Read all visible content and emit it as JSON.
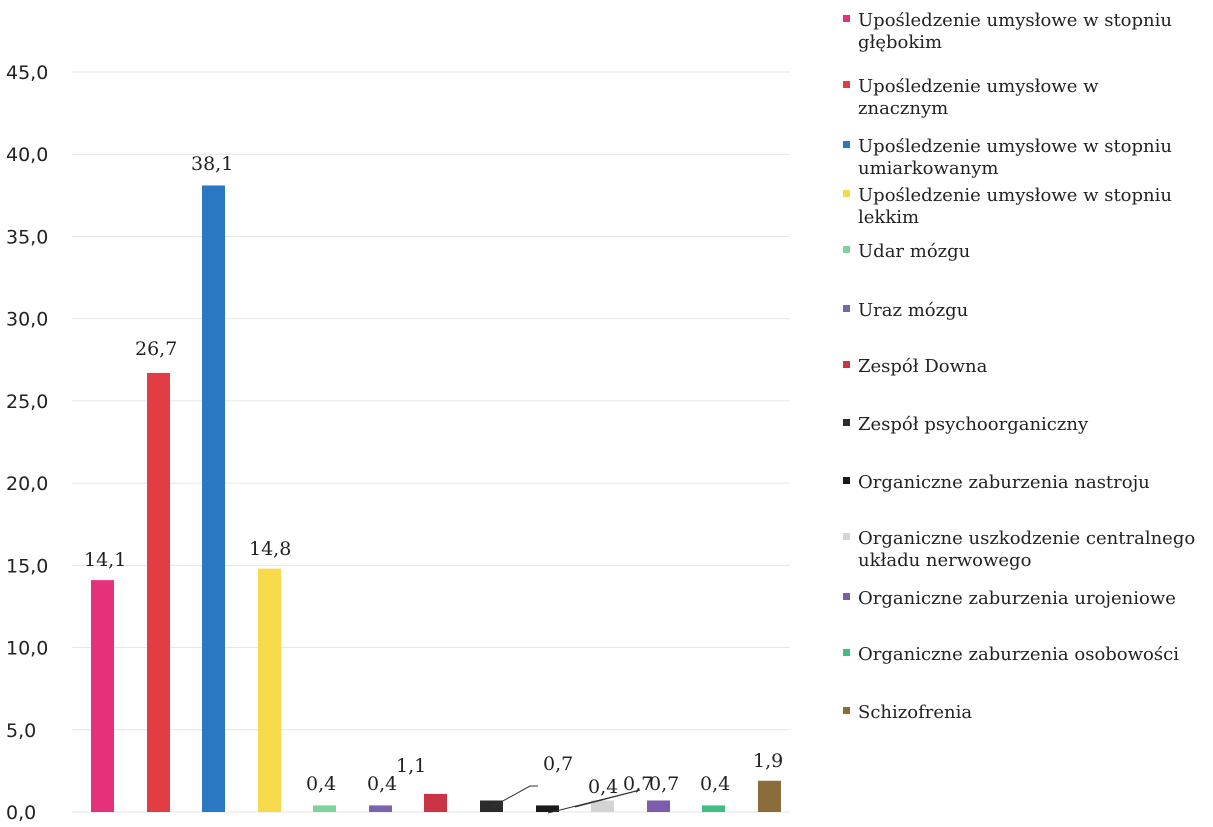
{
  "chart_data": {
    "type": "bar",
    "ylim": [
      0,
      45
    ],
    "yticks": [
      "0,0",
      "5,0",
      "10,0",
      "15,0",
      "20,0",
      "25,0",
      "30,0",
      "35,0",
      "40,0",
      "45,0"
    ],
    "grid": true,
    "legend_position": "right",
    "series": [
      {
        "name": "Upośledzenie umysłowe w stopniu głębokim",
        "legend_lines": [
          "Upośledzenie umysłowe w stopniu",
          "głębokim"
        ],
        "value": 14.1,
        "label": "14,1",
        "color": "#e6307a"
      },
      {
        "name": "Upośledzenie umysłowe w znacznym",
        "legend_lines": [
          "Upośledzenie umysłowe w",
          "znacznym"
        ],
        "value": 26.7,
        "label": "26,7",
        "color": "#e23d45"
      },
      {
        "name": "Upośledzenie umysłowe w stopniu umiarkowanym",
        "legend_lines": [
          "Upośledzenie umysłowe w stopniu",
          "umiarkowanym"
        ],
        "value": 38.1,
        "label": "38,1",
        "color": "#2b78c2"
      },
      {
        "name": "Upośledzenie umysłowe w stopniu lekkim",
        "legend_lines": [
          "Upośledzenie umysłowe w stopniu",
          "lekkim"
        ],
        "value": 14.8,
        "label": "14,8",
        "color": "#f7d94c"
      },
      {
        "name": "Udar mózgu",
        "legend_lines": [
          "Udar mózgu"
        ],
        "value": 0.4,
        "label": "0,4",
        "color": "#7fd39a"
      },
      {
        "name": "Uraz mózgu",
        "legend_lines": [
          "Uraz mózgu"
        ],
        "value": 0.4,
        "label": "0,4",
        "color": "#7a65ad"
      },
      {
        "name": "Zespół Downa",
        "legend_lines": [
          "Zespół Downa"
        ],
        "value": 1.1,
        "label": "1,1",
        "color": "#cc3344"
      },
      {
        "name": "Zespół psychoorganiczny",
        "legend_lines": [
          "Zespół psychoorganiczny"
        ],
        "value": 0.7,
        "label": "0,7",
        "color": "#2b2b2b"
      },
      {
        "name": "Organiczne zaburzenia nastroju",
        "legend_lines": [
          "Organiczne zaburzenia nastroju"
        ],
        "value": 0.4,
        "label": "0,4",
        "color": "#1a1a1a"
      },
      {
        "name": "Organiczne uszkodzenie centralnego układu nerwowego",
        "legend_lines": [
          "Organiczne uszkodzenie centralnego",
          "układu nerwowego"
        ],
        "value": 0.7,
        "label": "0,7",
        "color": "#d4d4d4"
      },
      {
        "name": "Organiczne zaburzenia urojeniowe",
        "legend_lines": [
          "Organiczne zaburzenia urojeniowe"
        ],
        "value": 0.7,
        "label": "0,7",
        "color": "#7b5cad"
      },
      {
        "name": "Organiczne zaburzenia osobowości",
        "legend_lines": [
          "Organiczne zaburzenia osobowości"
        ],
        "value": 0.4,
        "label": "0,4",
        "color": "#3fbf84"
      },
      {
        "name": "Schizofrenia",
        "legend_lines": [
          "Schizofrenia"
        ],
        "value": 1.9,
        "label": "1,9",
        "color": "#8a6d3b"
      }
    ]
  }
}
